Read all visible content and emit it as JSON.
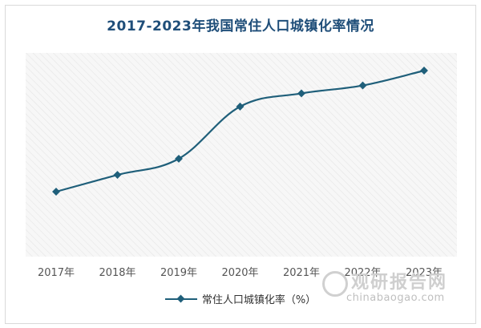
{
  "chart_data": {
    "type": "line",
    "title": "2017-2023年我国常住人口城镇化率情况",
    "categories": [
      "2017年",
      "2018年",
      "2019年",
      "2020年",
      "2021年",
      "2022年",
      "2023年"
    ],
    "series": [
      {
        "name": "常住人口城镇化率（%）",
        "values": [
          58.52,
          59.58,
          60.6,
          63.89,
          64.72,
          65.22,
          66.16
        ],
        "color": "#1f5f7a"
      }
    ],
    "grid": false,
    "legend_position": "bottom"
  },
  "watermark": {
    "name_cn": "观研报告网",
    "site": "chinabaogao.com"
  }
}
